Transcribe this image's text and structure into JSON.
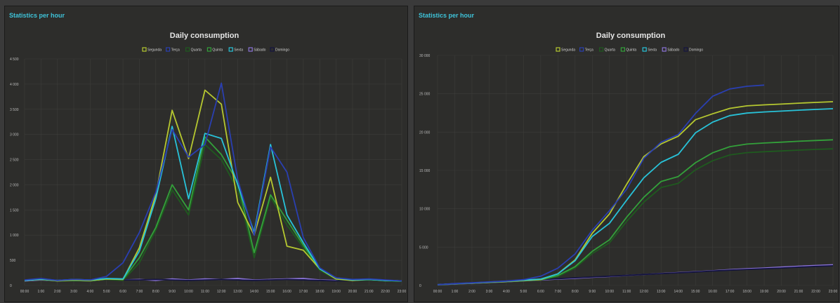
{
  "panels": [
    {
      "header": "Statistics per hour"
    },
    {
      "header": "Statistics per hour"
    }
  ],
  "legend": [
    {
      "name": "Segunda",
      "color": "#b5c730"
    },
    {
      "name": "Terça",
      "color": "#2a3fb0"
    },
    {
      "name": "Quarta",
      "color": "#1f5a1f"
    },
    {
      "name": "Quinta",
      "color": "#33a03a"
    },
    {
      "name": "Sexta",
      "color": "#28c2d8"
    },
    {
      "name": "Sábado",
      "color": "#8a73d6"
    },
    {
      "name": "Domingo",
      "color": "#141440"
    }
  ],
  "chart_data": [
    {
      "type": "line",
      "title": "Daily consumption",
      "x": [
        "00:00",
        "1:00",
        "2:00",
        "3:00",
        "4:00",
        "5:00",
        "6:00",
        "7:00",
        "8:00",
        "9:00",
        "10:00",
        "11:00",
        "12:00",
        "13:00",
        "14:00",
        "15:00",
        "16:00",
        "17:00",
        "18:00",
        "19:00",
        "20:00",
        "21:00",
        "22:00",
        "23:00"
      ],
      "x_tick_labels": [
        "00:00",
        "1:00",
        "2:00",
        "3:00",
        "4:00",
        "5:00",
        "6:00",
        "7:00",
        "8:00",
        "9:00",
        "10:00",
        "11:00",
        "12:00",
        "13:00",
        "14:00",
        "15:00",
        "16:00",
        "17:00",
        "18:00",
        "19:00",
        "20:00",
        "21:00",
        "22:00",
        "23:00"
      ],
      "y_ticks": [
        0,
        500,
        1000,
        1500,
        2000,
        2500,
        3000,
        3500,
        4000,
        4500
      ],
      "y_tick_labels": [
        "0",
        "500",
        "1 000",
        "1 500",
        "2 000",
        "2 500",
        "3 000",
        "3 500",
        "4 000",
        "4 500"
      ],
      "ylim": [
        0,
        4500
      ],
      "grid": true,
      "legend_position": "top-center",
      "series": [
        {
          "name": "Segunda",
          "color": "#b5c730",
          "values": [
            100,
            130,
            90,
            110,
            100,
            130,
            120,
            750,
            1800,
            3480,
            2520,
            3880,
            3600,
            1650,
            1000,
            2150,
            780,
            700,
            330,
            130,
            100,
            120,
            100,
            90
          ]
        },
        {
          "name": "Terça",
          "color": "#2a3fb0",
          "values": [
            110,
            140,
            100,
            120,
            110,
            180,
            450,
            1050,
            1850,
            3100,
            2550,
            2800,
            4020,
            2100,
            1000,
            2750,
            2250,
            950,
            350,
            150,
            120,
            130,
            110,
            90
          ]
        },
        {
          "name": "Quarta",
          "color": "#1f5a1f",
          "values": [
            100,
            120,
            90,
            100,
            90,
            120,
            100,
            450,
            1100,
            1900,
            1400,
            2800,
            2500,
            1900,
            550,
            1750,
            1200,
            750,
            300,
            120,
            100,
            110,
            90,
            80
          ]
        },
        {
          "name": "Quinta",
          "color": "#33a03a",
          "values": [
            100,
            120,
            90,
            100,
            95,
            130,
            120,
            550,
            1150,
            2000,
            1500,
            2950,
            2600,
            2050,
            650,
            1800,
            1300,
            800,
            330,
            140,
            110,
            120,
            100,
            90
          ]
        },
        {
          "name": "Sexta",
          "color": "#28c2d8",
          "values": [
            100,
            130,
            100,
            120,
            110,
            140,
            130,
            680,
            1720,
            3160,
            1720,
            3020,
            2920,
            2000,
            1050,
            2800,
            1400,
            850,
            330,
            150,
            110,
            120,
            100,
            90
          ]
        },
        {
          "name": "Sábado",
          "color": "#8a73d6",
          "values": [
            90,
            110,
            95,
            100,
            90,
            120,
            110,
            120,
            100,
            130,
            110,
            130,
            120,
            140,
            110,
            120,
            130,
            140,
            110,
            100,
            120,
            110,
            100,
            90
          ]
        },
        {
          "name": "Domingo",
          "color": "#141440",
          "values": [
            110,
            120,
            100,
            110,
            100,
            120,
            110,
            110,
            120,
            110,
            100,
            110,
            120,
            110,
            100,
            110,
            120,
            110,
            100,
            90,
            100,
            110,
            100,
            80
          ]
        }
      ]
    },
    {
      "type": "line",
      "title": "Daily consumption",
      "x": [
        "00:00",
        "1:00",
        "2:00",
        "3:00",
        "4:00",
        "5:00",
        "6:00",
        "7:00",
        "8:00",
        "9:00",
        "10:00",
        "11:00",
        "12:00",
        "13:00",
        "14:00",
        "15:00",
        "16:00",
        "17:00",
        "18:00",
        "19:00",
        "20:00",
        "21:00",
        "22:00",
        "23:00"
      ],
      "x_tick_labels": [
        "00:00",
        "1:00",
        "2:00",
        "3:00",
        "4:00",
        "5:00",
        "6:00",
        "7:00",
        "8:00",
        "9:00",
        "10:00",
        "11:00",
        "12:00",
        "13:00",
        "14:00",
        "15:00",
        "16:00",
        "17:00",
        "18:00",
        "19:00",
        "20:00",
        "21:00",
        "22:00",
        "23:00"
      ],
      "y_ticks": [
        0,
        5000,
        10000,
        15000,
        20000,
        25000,
        30000
      ],
      "y_tick_labels": [
        "0",
        "5 000",
        "10 000",
        "15 000",
        "20 000",
        "25 000",
        "30 000"
      ],
      "ylim": [
        0,
        30000
      ],
      "grid": true,
      "legend_position": "top-center",
      "series": [
        {
          "name": "Segunda",
          "color": "#b5c730",
          "values": [
            100,
            230,
            320,
            430,
            530,
            660,
            780,
            1530,
            3330,
            6810,
            9330,
            13210,
            16810,
            18460,
            19460,
            21610,
            22390,
            23090,
            23420,
            23550,
            23650,
            23770,
            23870,
            23960
          ]
        },
        {
          "name": "Terça",
          "color": "#2a3fb0",
          "values": [
            110,
            250,
            350,
            470,
            580,
            760,
            1210,
            2260,
            4110,
            7210,
            9760,
            12560,
            16580,
            18680,
            19680,
            22430,
            24680,
            25630,
            25980,
            26130,
            null,
            null,
            null,
            null
          ]
        },
        {
          "name": "Quarta",
          "color": "#1f5a1f",
          "values": [
            100,
            220,
            310,
            410,
            500,
            620,
            720,
            1170,
            2270,
            4170,
            5570,
            8370,
            10870,
            12770,
            13320,
            15070,
            16270,
            17020,
            17320,
            17440,
            17540,
            17650,
            17740,
            17820
          ]
        },
        {
          "name": "Quinta",
          "color": "#33a03a",
          "values": [
            100,
            220,
            310,
            410,
            505,
            635,
            755,
            1305,
            2455,
            4455,
            5955,
            8905,
            11505,
            13555,
            14205,
            16005,
            17305,
            18105,
            18435,
            18575,
            18685,
            18805,
            18905,
            18995
          ]
        },
        {
          "name": "Sexta",
          "color": "#28c2d8",
          "values": [
            100,
            230,
            330,
            450,
            560,
            700,
            830,
            1510,
            3230,
            6390,
            8110,
            11130,
            14050,
            16050,
            17100,
            19900,
            21300,
            22150,
            22480,
            22630,
            22740,
            22860,
            22960,
            23050
          ]
        },
        {
          "name": "Sábado",
          "color": "#8a73d6",
          "values": [
            90,
            200,
            295,
            395,
            485,
            605,
            715,
            835,
            935,
            1065,
            1175,
            1305,
            1425,
            1565,
            1675,
            1795,
            1925,
            2065,
            2175,
            2275,
            2395,
            2505,
            2605,
            2695
          ]
        },
        {
          "name": "Domingo",
          "color": "#141440",
          "values": [
            110,
            230,
            330,
            440,
            540,
            660,
            770,
            880,
            1000,
            1110,
            1210,
            1320,
            1440,
            1550,
            1650,
            1760,
            1880,
            1990,
            2090,
            2180,
            2280,
            2390,
            2490,
            2570
          ]
        }
      ]
    }
  ]
}
